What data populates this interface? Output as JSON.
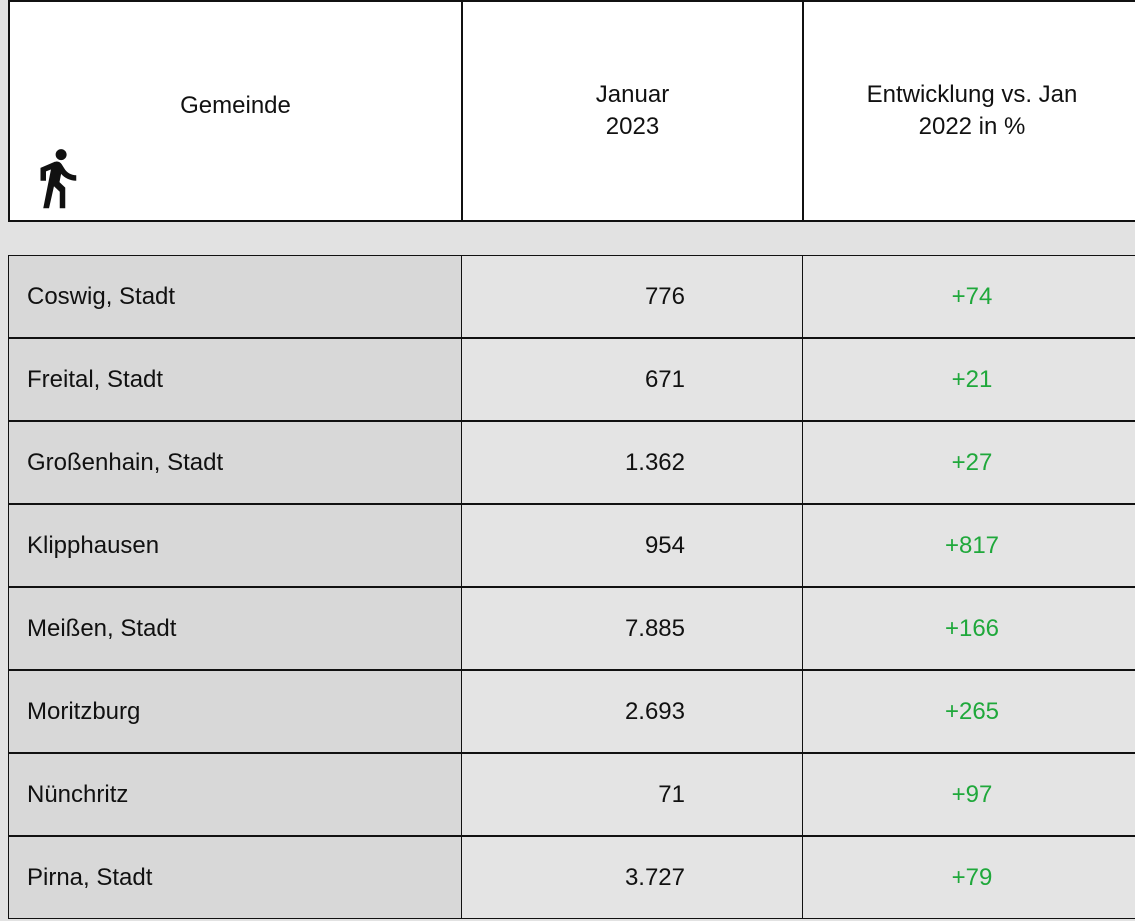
{
  "table": {
    "header": [
      {
        "lines": [
          "Gemeinde"
        ]
      },
      {
        "lines": [
          "Januar",
          "2023"
        ]
      },
      {
        "lines": [
          "Entwicklung vs. Jan",
          "2022 in %"
        ]
      }
    ],
    "rows": [
      [
        "Coswig, Stadt",
        "776",
        "+74"
      ],
      [
        "Freital, Stadt",
        "671",
        "+21"
      ],
      [
        "Großenhain, Stadt",
        "1.362",
        "+27"
      ],
      [
        "Klipphausen",
        "954",
        "+817"
      ],
      [
        "Meißen, Stadt",
        "7.885",
        "+166"
      ],
      [
        "Moritzburg",
        "2.693",
        "+265"
      ],
      [
        "Nünchritz",
        "71",
        "+97"
      ],
      [
        "Pirna, Stadt",
        "3.727",
        "+79"
      ]
    ]
  }
}
